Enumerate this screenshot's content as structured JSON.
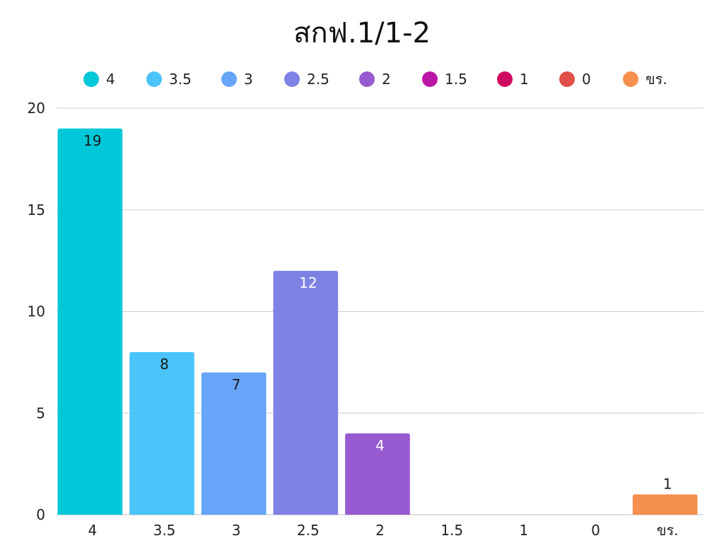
{
  "chart_data": {
    "type": "bar",
    "title": "สกฟ.1/1-2",
    "xlabel": "",
    "ylabel": "",
    "categories": [
      "4",
      "3.5",
      "3",
      "2.5",
      "2",
      "1.5",
      "1",
      "0",
      "ขร."
    ],
    "values": [
      19,
      8,
      7,
      12,
      4,
      0,
      0,
      0,
      1
    ],
    "colors": [
      "#00C8D8",
      "#4BC4F9",
      "#66A5F8",
      "#7F82E5",
      "#985AD0",
      "#BB16A6",
      "#D10A61",
      "#E04F4A",
      "#F5904F"
    ],
    "ylim": [
      0,
      20
    ],
    "yticks": [
      0,
      5,
      10,
      15,
      20
    ],
    "grid": true,
    "legend_position": "top",
    "data_labels": [
      "19",
      "8",
      "7",
      "12",
      "4",
      "",
      "",
      "",
      "1"
    ],
    "data_label_colors": [
      "#1a1a1a",
      "#1a1a1a",
      "#1a1a1a",
      "#ffffff",
      "#ffffff",
      "",
      "",
      "",
      "#1a1a1a"
    ]
  }
}
